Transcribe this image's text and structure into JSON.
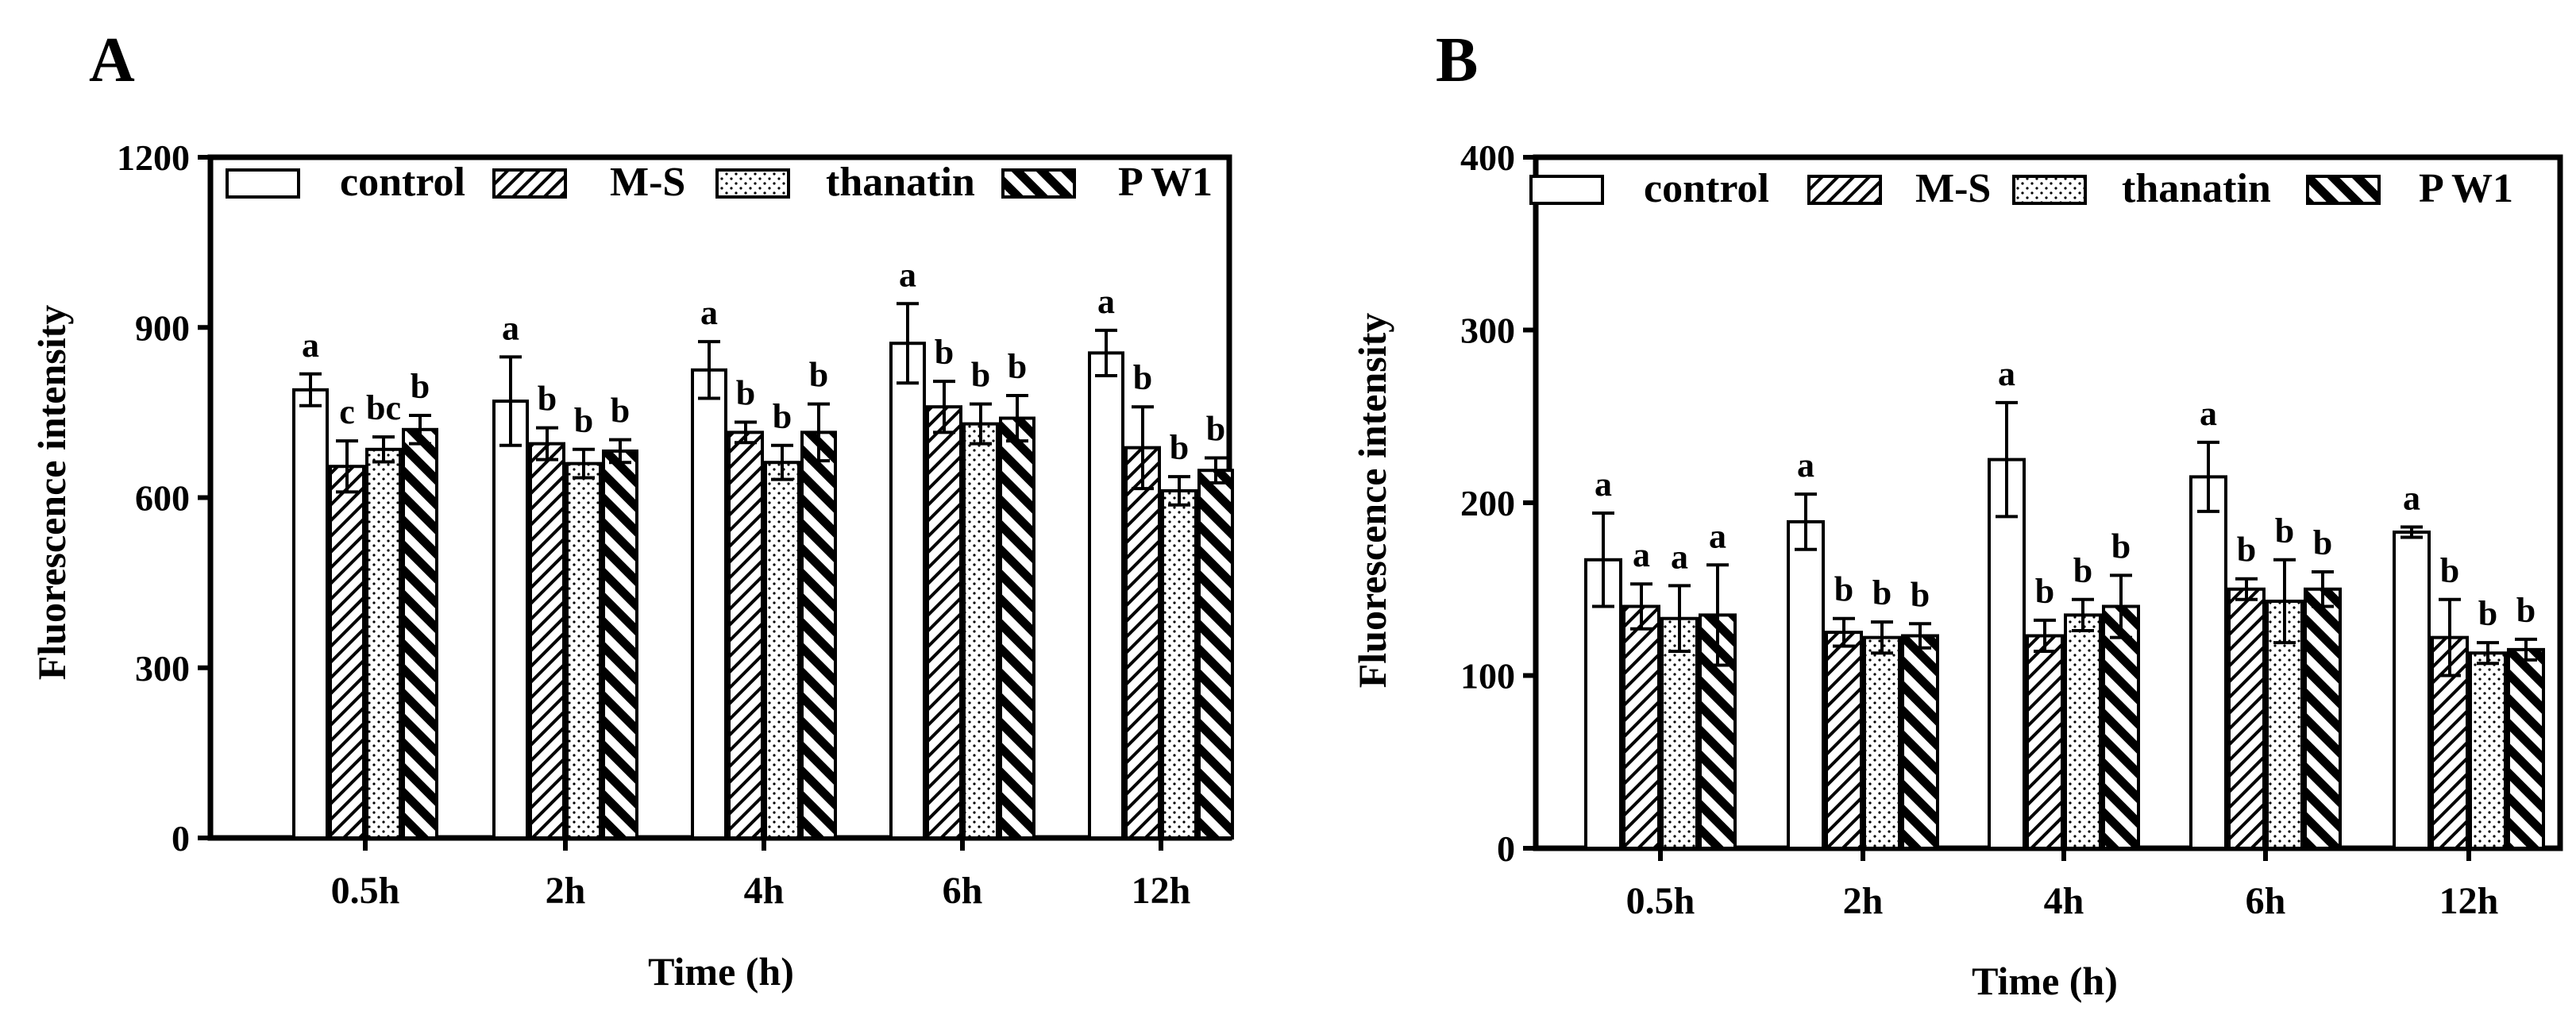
{
  "chart_data": [
    {
      "panel_label": "A",
      "type": "bar",
      "ylabel": "Fluorescence intensity",
      "xlabel": "Time (h)",
      "ylim": [
        0,
        1200
      ],
      "yticks": [
        "0",
        "300",
        "600",
        "900",
        "1200"
      ],
      "ytick_values": [
        0,
        300,
        600,
        900,
        1200
      ],
      "categories": [
        "0.5h",
        "2h",
        "4h",
        "6h",
        "12h"
      ],
      "legend_position": "top",
      "series": [
        {
          "name": "control",
          "pattern": "open",
          "values": [
            790,
            770,
            825,
            872,
            855
          ],
          "errors": [
            28,
            78,
            50,
            70,
            40
          ],
          "letters": [
            "a",
            "a",
            "a",
            "a",
            "a"
          ]
        },
        {
          "name": "M-S",
          "pattern": "hatch-thin",
          "values": [
            655,
            695,
            715,
            760,
            688
          ],
          "errors": [
            45,
            28,
            18,
            45,
            72
          ],
          "letters": [
            "c",
            "b",
            "b",
            "b",
            "b"
          ]
        },
        {
          "name": "thanatin",
          "pattern": "dots",
          "values": [
            685,
            660,
            662,
            730,
            612
          ],
          "errors": [
            22,
            25,
            30,
            35,
            25
          ],
          "letters": [
            "bc",
            "b",
            "b",
            "b",
            "b"
          ]
        },
        {
          "name": "P W1",
          "pattern": "hatch-thick",
          "values": [
            720,
            682,
            715,
            740,
            648
          ],
          "errors": [
            25,
            20,
            50,
            40,
            22
          ],
          "letters": [
            "b",
            "b",
            "b",
            "b",
            "b"
          ]
        }
      ]
    },
    {
      "panel_label": "B",
      "type": "bar",
      "ylabel": "Fluorescence intensity",
      "xlabel": "Time (h)",
      "ylim": [
        0,
        400
      ],
      "yticks": [
        "0",
        "100",
        "200",
        "300",
        "400"
      ],
      "ytick_values": [
        0,
        100,
        200,
        300,
        400
      ],
      "categories": [
        "0.5h",
        "2h",
        "4h",
        "6h",
        "12h"
      ],
      "legend_position": "top",
      "series": [
        {
          "name": "control",
          "pattern": "open",
          "values": [
            167,
            189,
            225,
            215,
            183
          ],
          "errors": [
            27,
            16,
            33,
            20,
            3
          ],
          "letters": [
            "a",
            "a",
            "a",
            "a",
            "a"
          ]
        },
        {
          "name": "M-S",
          "pattern": "hatch-thin",
          "values": [
            140,
            125,
            123,
            150,
            122
          ],
          "errors": [
            13,
            8,
            9,
            6,
            22
          ],
          "letters": [
            "a",
            "b",
            "b",
            "b",
            "b"
          ]
        },
        {
          "name": "thanatin",
          "pattern": "dots",
          "values": [
            133,
            122,
            135,
            143,
            113
          ],
          "errors": [
            19,
            9,
            9,
            24,
            6
          ],
          "letters": [
            "a",
            "b",
            "b",
            "b",
            "b"
          ]
        },
        {
          "name": "P W1",
          "pattern": "hatch-thick",
          "values": [
            135,
            123,
            140,
            150,
            115
          ],
          "errors": [
            29,
            7,
            18,
            10,
            6
          ],
          "letters": [
            "a",
            "b",
            "b",
            "b",
            "b"
          ]
        }
      ]
    }
  ]
}
